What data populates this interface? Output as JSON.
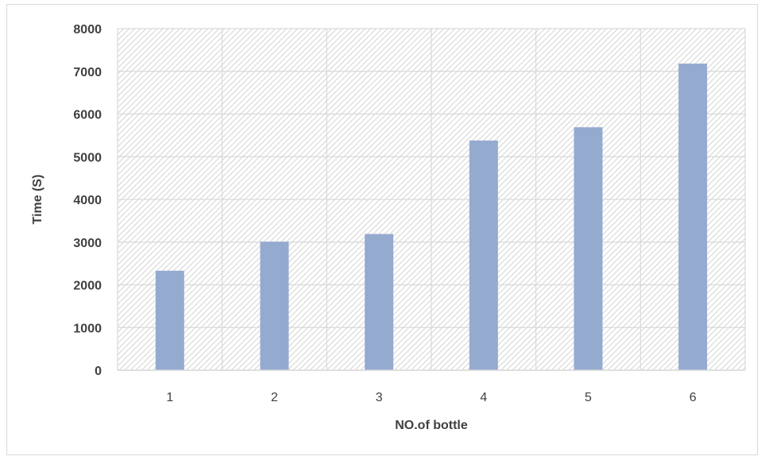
{
  "chart_data": {
    "type": "bar",
    "title": "",
    "xlabel": "NO.of bottle",
    "ylabel": "Time (S)",
    "categories": [
      "1",
      "2",
      "3",
      "4",
      "5",
      "6"
    ],
    "series": [
      {
        "values": [
          2330,
          3010,
          3190,
          5380,
          5690,
          7180
        ]
      }
    ],
    "ylim": [
      0,
      8000
    ],
    "yticks": [
      0,
      1000,
      2000,
      3000,
      4000,
      5000,
      6000,
      7000,
      8000
    ],
    "grid": true,
    "legend": "none",
    "bar_color": "#95aacf",
    "plot_background": "hatched light gray"
  }
}
